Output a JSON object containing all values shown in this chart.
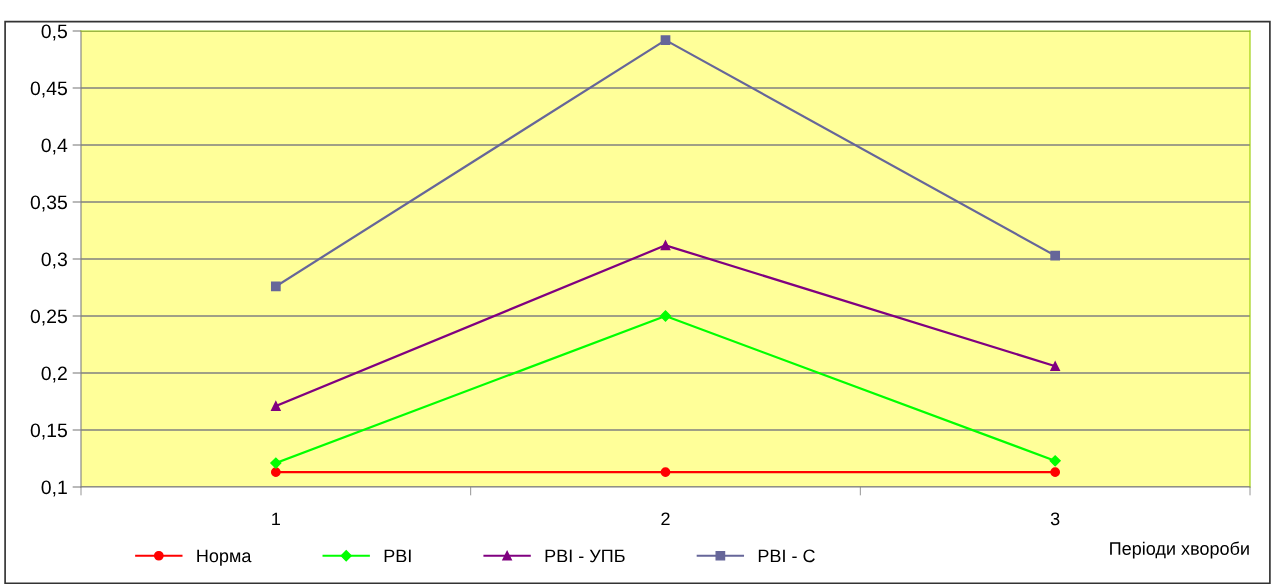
{
  "chart_data": {
    "type": "line",
    "xlabel": "Періоди хвороби",
    "categories": [
      "1",
      "2",
      "3"
    ],
    "series": [
      {
        "name": "Норма",
        "color": "#ff0000",
        "marker": "circle",
        "values": [
          0.113,
          0.113,
          0.113
        ]
      },
      {
        "name": "РВІ",
        "color": "#00ff00",
        "marker": "diamond",
        "values": [
          0.121,
          0.25,
          0.123
        ]
      },
      {
        "name": "РВІ - УПБ",
        "color": "#800080",
        "marker": "triangle",
        "values": [
          0.171,
          0.312,
          0.206
        ]
      },
      {
        "name": "РВІ - С",
        "color": "#666699",
        "marker": "square",
        "values": [
          0.276,
          0.492,
          0.303
        ]
      }
    ],
    "ylim": [
      0.1,
      0.5
    ],
    "yticks": [
      {
        "value": 0.1,
        "label": "0,1"
      },
      {
        "value": 0.15,
        "label": "0,15"
      },
      {
        "value": 0.2,
        "label": "0,2"
      },
      {
        "value": 0.25,
        "label": "0,25"
      },
      {
        "value": 0.3,
        "label": "0,3"
      },
      {
        "value": 0.35,
        "label": "0,35"
      },
      {
        "value": 0.4,
        "label": "0,4"
      },
      {
        "value": 0.45,
        "label": "0,45"
      },
      {
        "value": 0.5,
        "label": "0,5"
      }
    ],
    "grid": "y",
    "legend": "bottom"
  }
}
